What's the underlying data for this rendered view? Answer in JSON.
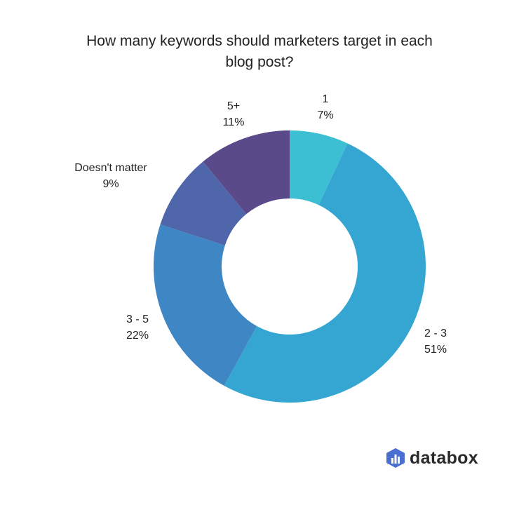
{
  "chart_data": {
    "type": "pie",
    "donut": true,
    "title_lines": [
      "How many keywords should marketers target in each",
      "blog post?"
    ],
    "categories": [
      "1",
      "2 - 3",
      "3 - 5",
      "Doesn't matter",
      "5+"
    ],
    "values": [
      7,
      51,
      22,
      9,
      11
    ],
    "value_labels": [
      "7%",
      "51%",
      "22%",
      "9%",
      "11%"
    ],
    "colors": [
      "#3cbfd3",
      "#35a6d1",
      "#3e87c4",
      "#5066ab",
      "#5b4a8a"
    ],
    "start": "top",
    "direction": "clockwise"
  },
  "brand": {
    "name": "databox",
    "color": "#4a6fd0"
  }
}
